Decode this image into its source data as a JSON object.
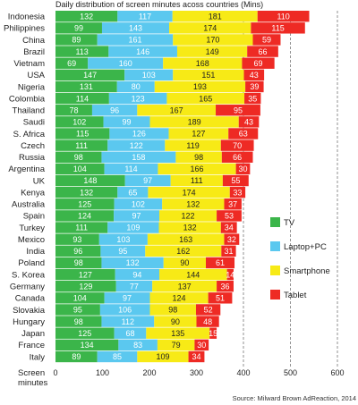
{
  "chart_data": {
    "type": "bar",
    "stacked": true,
    "orientation": "horizontal",
    "title": "Daily distribution of screen minutes acoss countries (Mins)",
    "xlabel": "Screen minutes",
    "xlim": [
      0,
      600
    ],
    "xticks": [
      0,
      100,
      200,
      300,
      400,
      500,
      600
    ],
    "gridlines_at": [
      400,
      500,
      600
    ],
    "legend_position": "right",
    "categories": [
      "Indonesia",
      "Philippines",
      "China",
      "Brazil",
      "Vietnam",
      "USA",
      "Nigeria",
      "Colombia",
      "Thailand",
      "Saudi",
      "S. Africa",
      "Czech",
      "Russia",
      "Argentina",
      "UK",
      "Kenya",
      "Australia",
      "Spain",
      "Turkey",
      "Mexico",
      "India",
      "Poland",
      "S. Korea",
      "Germany",
      "Canada",
      "Slovakia",
      "Hungary",
      "Japan",
      "France",
      "Italy"
    ],
    "series": [
      {
        "name": "TV",
        "color": "#3bb54a",
        "values": [
          132,
          99,
          89,
          113,
          69,
          147,
          131,
          114,
          78,
          102,
          115,
          111,
          98,
          104,
          148,
          132,
          125,
          124,
          111,
          93,
          96,
          98,
          127,
          129,
          104,
          95,
          98,
          125,
          134,
          89
        ]
      },
      {
        "name": "Laptop+PC",
        "color": "#5bc8ef",
        "values": [
          117,
          143,
          161,
          146,
          160,
          103,
          80,
          123,
          96,
          99,
          126,
          122,
          158,
          114,
          97,
          65,
          102,
          97,
          109,
          103,
          95,
          132,
          94,
          77,
          97,
          106,
          112,
          68,
          83,
          85
        ]
      },
      {
        "name": "Smartphone",
        "color": "#f7ea16",
        "values": [
          181,
          174,
          170,
          149,
          168,
          151,
          193,
          165,
          167,
          189,
          127,
          119,
          98,
          166,
          111,
          174,
          132,
          122,
          132,
          163,
          162,
          90,
          144,
          137,
          124,
          98,
          90,
          135,
          79,
          109
        ]
      },
      {
        "name": "Tablet",
        "color": "#ee2a24",
        "values": [
          110,
          115,
          59,
          66,
          69,
          43,
          39,
          35,
          95,
          43,
          63,
          70,
          66,
          30,
          55,
          33,
          37,
          53,
          34,
          32,
          31,
          61,
          14,
          36,
          51,
          52,
          48,
          15,
          30,
          34
        ]
      }
    ]
  },
  "source": "Source: Milward Brown AdReaction, 2014"
}
